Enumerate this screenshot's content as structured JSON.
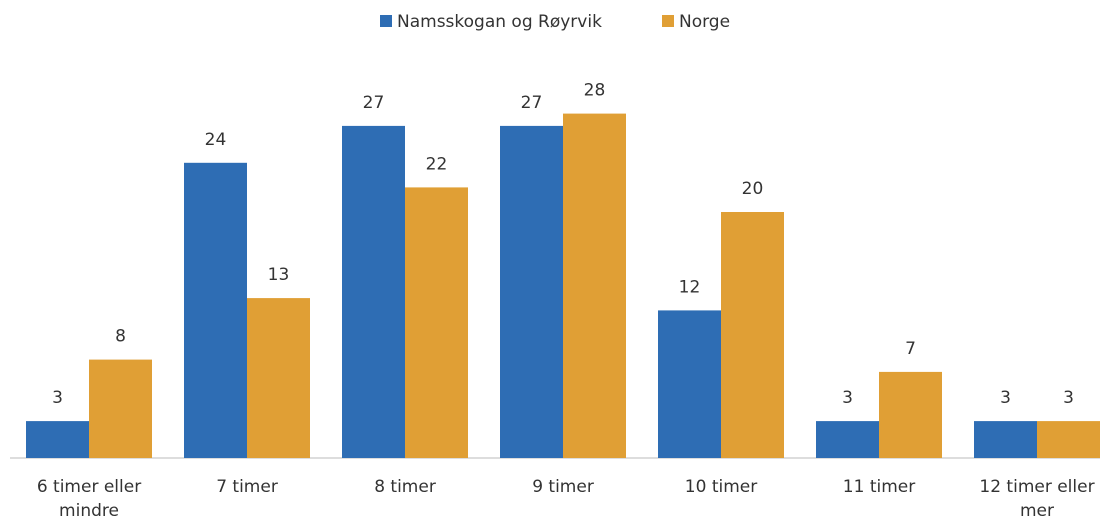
{
  "chart_data": {
    "type": "bar",
    "categories": [
      "6 timer eller mindre",
      "7 timer",
      "8 timer",
      "9 timer",
      "10 timer",
      "11 timer",
      "12 timer eller mer"
    ],
    "series": [
      {
        "name": "Namsskogan og Røyrvik",
        "color": "#2e6db4",
        "values": [
          3,
          24,
          27,
          27,
          12,
          3,
          3
        ]
      },
      {
        "name": "Norge",
        "color": "#e09f35",
        "values": [
          8,
          13,
          22,
          28,
          20,
          7,
          3
        ]
      }
    ],
    "legend": "top"
  }
}
